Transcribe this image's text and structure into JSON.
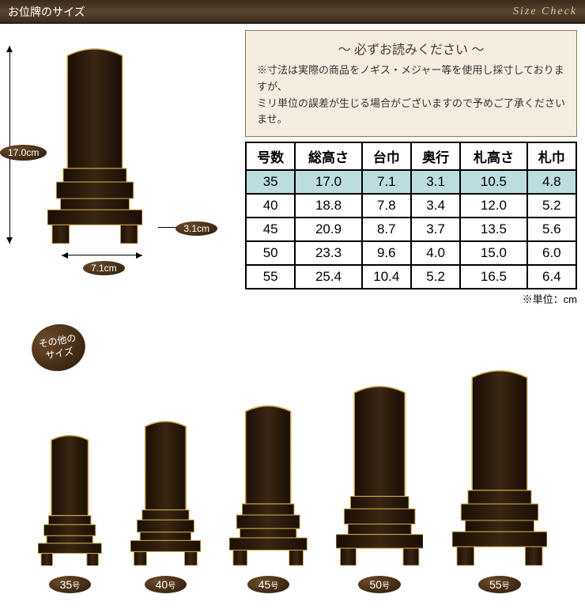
{
  "header": {
    "title": "お位牌のサイズ",
    "subtitle": "Size Check"
  },
  "dimensions": {
    "height": "17.0cm",
    "width": "7.1cm",
    "depth": "3.1cm"
  },
  "notice": {
    "title": "～ 必ずお読みください ～",
    "line1": "※寸法は実際の商品をノギス・メジャー等を使用し採寸しておりますが、",
    "line2": "ミリ単位の誤差が生じる場合がございますので予めご了承くださいませ。"
  },
  "table": {
    "columns": [
      "号数",
      "総高さ",
      "台巾",
      "奥行",
      "札高さ",
      "札巾"
    ],
    "highlight_row": 0,
    "rows": [
      [
        "35",
        "17.0",
        "7.1",
        "3.1",
        "10.5",
        "4.8"
      ],
      [
        "40",
        "18.8",
        "7.8",
        "3.4",
        "12.0",
        "5.2"
      ],
      [
        "45",
        "20.9",
        "8.7",
        "3.7",
        "13.5",
        "5.6"
      ],
      [
        "50",
        "23.3",
        "9.6",
        "4.0",
        "15.0",
        "6.0"
      ],
      [
        "55",
        "25.4",
        "10.4",
        "5.2",
        "16.5",
        "6.4"
      ]
    ],
    "unit_note": "※単位：cm"
  },
  "other_sizes": {
    "badge": "その他の\nサイズ",
    "items": [
      {
        "label": "35",
        "suffix": "号",
        "scale": 0.67
      },
      {
        "label": "40",
        "suffix": "号",
        "scale": 0.74
      },
      {
        "label": "45",
        "suffix": "号",
        "scale": 0.82
      },
      {
        "label": "50",
        "suffix": "号",
        "scale": 0.92
      },
      {
        "label": "55",
        "suffix": "号",
        "scale": 1.0
      }
    ]
  },
  "tablet_style": {
    "fill_dark": "#1a0e05",
    "fill_light": "#3a2612",
    "gold": "#c9a84a",
    "base_height": 250
  }
}
